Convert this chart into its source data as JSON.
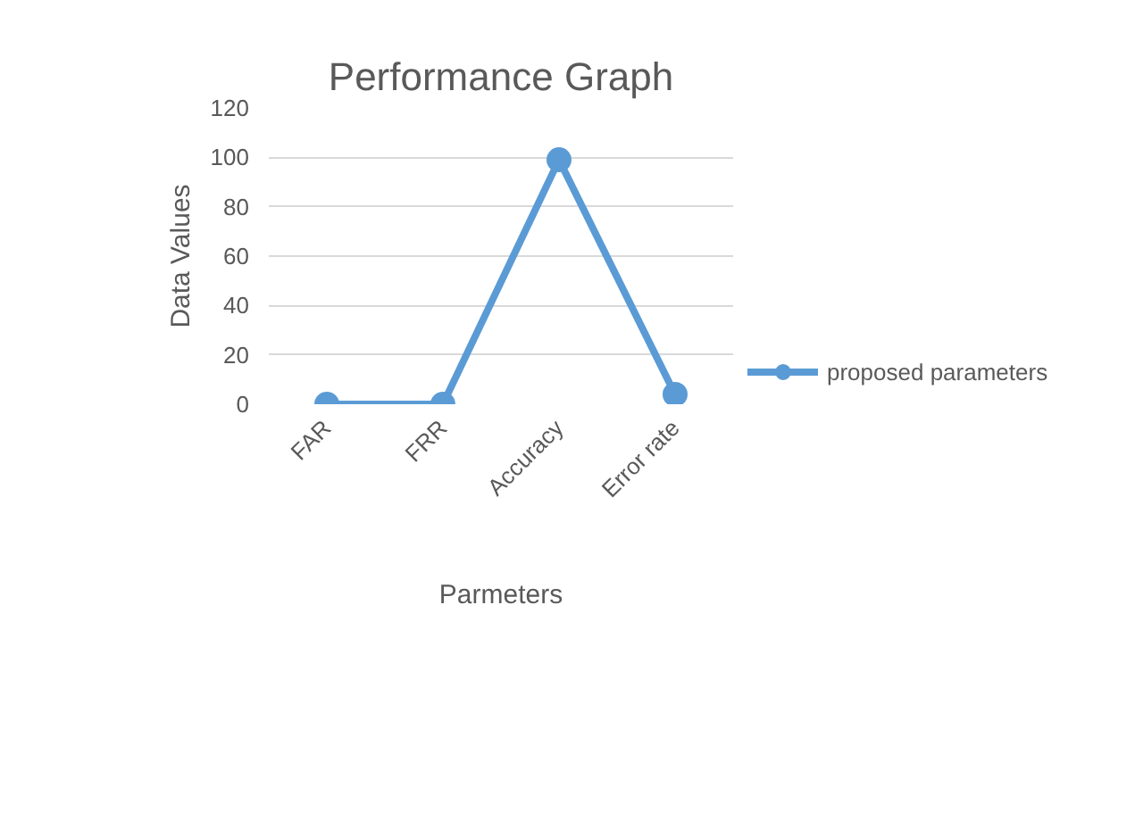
{
  "chart_data": {
    "type": "line",
    "title": "Performance Graph",
    "xlabel": "Parmeters",
    "ylabel": "Data Values",
    "categories": [
      "FAR",
      "FRR",
      "Accuracy",
      "Error rate"
    ],
    "series": [
      {
        "name": "proposed parameters",
        "color": "#5b9bd5",
        "values": [
          0,
          0,
          99,
          4
        ]
      }
    ],
    "ylim": [
      0,
      120
    ],
    "yticks": [
      0,
      20,
      40,
      60,
      80,
      100,
      120
    ],
    "grid": "y",
    "legend": "right",
    "marker": "circle",
    "line_style": "solid"
  }
}
